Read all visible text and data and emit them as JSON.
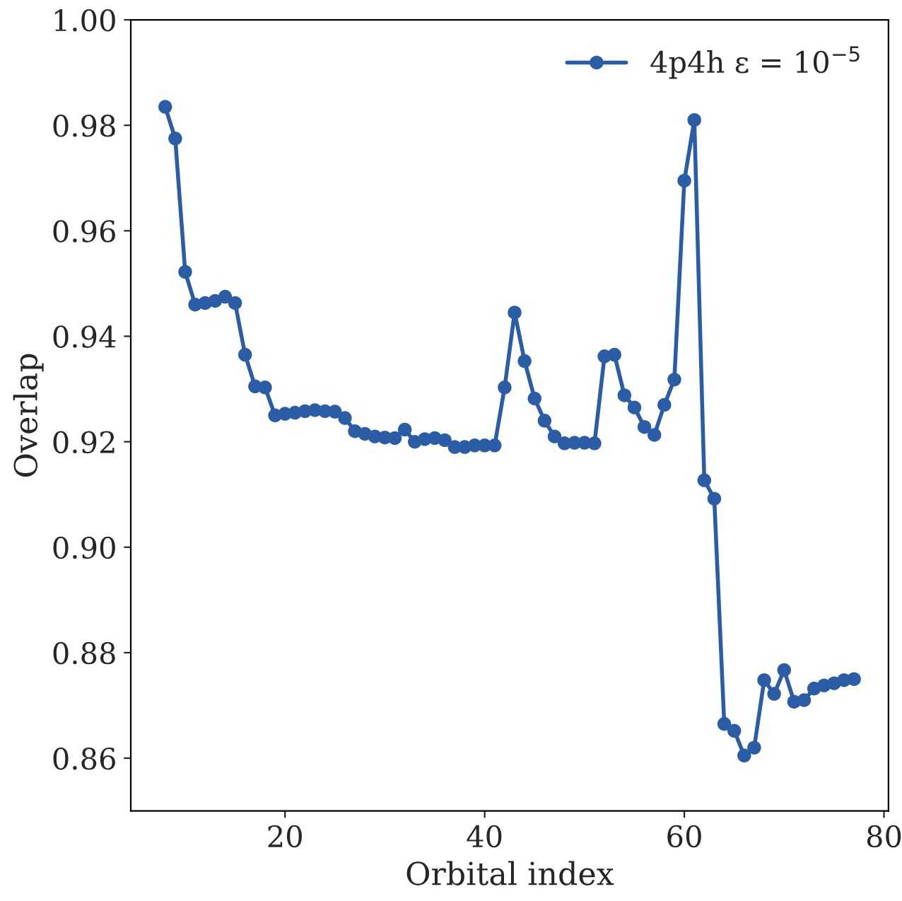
{
  "chart_data": {
    "type": "line",
    "xlabel": "Orbital index",
    "ylabel": "Overlap",
    "x": [
      8,
      9,
      10,
      11,
      12,
      13,
      14,
      15,
      16,
      17,
      18,
      19,
      20,
      21,
      22,
      23,
      24,
      25,
      26,
      27,
      28,
      29,
      30,
      31,
      32,
      33,
      34,
      35,
      36,
      37,
      38,
      39,
      40,
      41,
      42,
      43,
      44,
      45,
      46,
      47,
      48,
      49,
      50,
      51,
      52,
      53,
      54,
      55,
      56,
      57,
      58,
      59,
      60,
      61,
      62,
      63,
      64,
      65,
      66,
      67,
      68,
      69,
      70,
      71,
      72,
      73,
      74,
      75,
      76,
      77
    ],
    "series": [
      {
        "name": "4p4h ε = 10$^{−5}$",
        "color": "#2a5da5",
        "values": [
          0.9835,
          0.9775,
          0.9522,
          0.946,
          0.9463,
          0.9467,
          0.9475,
          0.9463,
          0.9365,
          0.9305,
          0.9303,
          0.925,
          0.9253,
          0.9255,
          0.9258,
          0.926,
          0.9258,
          0.9257,
          0.9245,
          0.922,
          0.9215,
          0.921,
          0.9208,
          0.9207,
          0.9223,
          0.92,
          0.9205,
          0.9207,
          0.9203,
          0.919,
          0.919,
          0.9193,
          0.9193,
          0.9193,
          0.9303,
          0.9445,
          0.9353,
          0.9282,
          0.924,
          0.921,
          0.9197,
          0.9198,
          0.9198,
          0.9197,
          0.9362,
          0.9365,
          0.9288,
          0.9265,
          0.9228,
          0.9213,
          0.927,
          0.9318,
          0.9695,
          0.981,
          0.9127,
          0.9092,
          0.8665,
          0.8652,
          0.8605,
          0.862,
          0.8748,
          0.8722,
          0.8767,
          0.8707,
          0.871,
          0.8732,
          0.8738,
          0.8742,
          0.8748,
          0.875
        ]
      }
    ],
    "xlim": [
      4.55,
      80.45
    ],
    "ylim": [
      0.85,
      1.0
    ],
    "xticks": [
      20,
      40,
      60,
      80
    ],
    "yticks": [
      {
        "value": 0.86,
        "label": "0.86"
      },
      {
        "value": 0.88,
        "label": "0.88"
      },
      {
        "value": 0.9,
        "label": "0.90"
      },
      {
        "value": 0.92,
        "label": "0.92"
      },
      {
        "value": 0.94,
        "label": "0.94"
      },
      {
        "value": 0.96,
        "label": "0.96"
      },
      {
        "value": 0.98,
        "label": "0.98"
      },
      {
        "value": 1.0,
        "label": "1.00"
      }
    ],
    "marker": "circle",
    "line_style": "solid",
    "legend": "top right",
    "grid": false
  }
}
